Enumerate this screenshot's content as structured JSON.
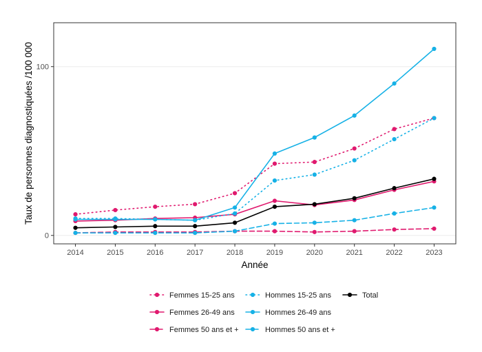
{
  "chart_data": {
    "type": "line",
    "title": "",
    "xlabel": "Année",
    "ylabel": "Taux de personnes diagnostiquées /100 000",
    "x": [
      2014,
      2015,
      2016,
      2017,
      2018,
      2019,
      2020,
      2021,
      2022,
      2023
    ],
    "x_tick_labels": [
      "2014",
      "2015",
      "2016",
      "2017",
      "2018",
      "2019",
      "2020",
      "2021",
      "2022",
      "2023"
    ],
    "y_ticks": [
      0,
      100
    ],
    "y_tick_labels": [
      "0",
      "100"
    ],
    "ylim": [
      -5,
      126
    ],
    "grid": true,
    "legend_position": "bottom",
    "series": [
      {
        "name": "Femmes 15-25 ans",
        "color": "#e0196e",
        "linestyle": "dotted",
        "values": [
          12.5,
          15,
          17,
          18.5,
          25,
          42.5,
          43.5,
          51.5,
          63,
          69.5
        ]
      },
      {
        "name": "Femmes 26-49 ans",
        "color": "#e0196e",
        "linestyle": "solid",
        "values": [
          8.5,
          9,
          10,
          10.5,
          12.5,
          20.5,
          18,
          21,
          27,
          32
        ]
      },
      {
        "name": "Femmes 50 ans et +",
        "color": "#e0196e",
        "linestyle": "dashed",
        "values": [
          1.5,
          2,
          2,
          2,
          2.5,
          2.5,
          2,
          2.5,
          3.5,
          4
        ]
      },
      {
        "name": "Hommes 15-25 ans",
        "color": "#16b1e6",
        "linestyle": "dotted",
        "values": [
          10,
          10,
          9.5,
          9,
          13,
          32.5,
          36,
          44.5,
          57,
          69.5
        ]
      },
      {
        "name": "Hommes 26-49 ans",
        "color": "#16b1e6",
        "linestyle": "solid",
        "values": [
          9.5,
          9.5,
          9.5,
          9,
          16.5,
          48.5,
          58,
          71,
          90,
          110.5
        ]
      },
      {
        "name": "Hommes 50 ans et +",
        "color": "#16b1e6",
        "linestyle": "dashed",
        "values": [
          1.5,
          1.5,
          1.5,
          1.5,
          2.5,
          7,
          7.5,
          9,
          13,
          16.5
        ]
      },
      {
        "name": "Total",
        "color": "#000000",
        "linestyle": "solid",
        "values": [
          4.5,
          5,
          5.5,
          5.5,
          7.5,
          17,
          18.5,
          22,
          28,
          33.5
        ]
      }
    ],
    "legend": {
      "rows": [
        [
          "Femmes 15-25 ans",
          "Hommes 15-25 ans",
          "Total"
        ],
        [
          "Femmes 26-49 ans",
          "Hommes 26-49 ans"
        ],
        [
          "Femmes 50 ans et +",
          "Hommes 50 ans et +"
        ]
      ]
    }
  }
}
